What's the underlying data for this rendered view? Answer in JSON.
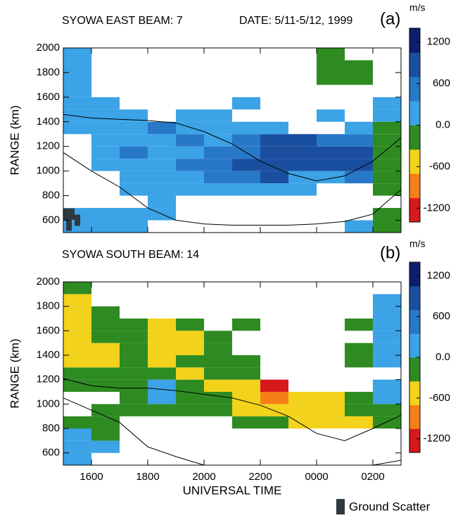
{
  "legend": {
    "label": "Ground Scatter",
    "color": "#2f3a40"
  },
  "chart_data": [
    {
      "type": "heatmap",
      "title": "SYOWA EAST BEAM: 7",
      "date": "DATE: 5/11-5/12, 1999",
      "panel_label": "(a)",
      "unit": "m/s",
      "ylabel": "RANGE (km)",
      "show_xticklabels": false,
      "xlim": [
        15,
        27
      ],
      "ylim": [
        500,
        2000
      ],
      "xticks": [
        {
          "value": 16,
          "label": "1600"
        },
        {
          "value": 18,
          "label": "1800"
        },
        {
          "value": 20,
          "label": "2000"
        },
        {
          "value": 22,
          "label": "2200"
        },
        {
          "value": 24,
          "label": "0000"
        },
        {
          "value": 26,
          "label": "0200"
        }
      ],
      "yticks": [
        600,
        800,
        1000,
        1200,
        1400,
        1600,
        1800,
        2000
      ],
      "colorscale": {
        "zlim": [
          -1400,
          1400
        ],
        "colors": [
          "#d7191c",
          "#f57f17",
          "#f2d21b",
          "#2e8b22",
          "#3ba3e6",
          "#2878c8",
          "#1a4fa0",
          "#0d1f6b"
        ],
        "ticks": [
          1200,
          600,
          {
            "value": 0,
            "label": "0.0"
          },
          -600,
          -1200
        ]
      },
      "xbins": [
        15,
        16,
        17,
        18,
        19,
        20,
        21,
        22,
        23,
        24,
        25,
        26,
        27
      ],
      "ybins": [
        500,
        600,
        700,
        800,
        900,
        1000,
        1100,
        1200,
        1300,
        1400,
        1500,
        1600,
        1700,
        1800,
        1900,
        2000
      ],
      "z": [
        [
          300,
          300,
          300,
          null,
          null,
          null,
          null,
          null,
          null,
          null,
          300,
          -300
        ],
        [
          300,
          300,
          300,
          300,
          null,
          null,
          null,
          null,
          null,
          null,
          null,
          -300
        ],
        [
          null,
          null,
          null,
          300,
          null,
          null,
          null,
          null,
          null,
          null,
          null,
          null
        ],
        [
          null,
          null,
          300,
          300,
          300,
          300,
          300,
          300,
          300,
          null,
          null,
          -200
        ],
        [
          null,
          null,
          300,
          300,
          300,
          400,
          600,
          700,
          300,
          300,
          400,
          -200
        ],
        [
          null,
          300,
          300,
          300,
          400,
          500,
          700,
          900,
          900,
          700,
          800,
          -300
        ],
        [
          null,
          300,
          400,
          300,
          300,
          400,
          600,
          900,
          900,
          900,
          1000,
          -200
        ],
        [
          null,
          300,
          300,
          300,
          400,
          300,
          500,
          700,
          700,
          400,
          400,
          -200
        ],
        [
          300,
          300,
          300,
          400,
          300,
          300,
          300,
          300,
          null,
          null,
          300,
          -100
        ],
        [
          300,
          300,
          300,
          null,
          300,
          300,
          null,
          null,
          null,
          300,
          null,
          300
        ],
        [
          300,
          300,
          null,
          null,
          null,
          null,
          300,
          null,
          null,
          null,
          null,
          300
        ],
        [
          300,
          null,
          null,
          null,
          null,
          null,
          null,
          null,
          null,
          null,
          null,
          null
        ],
        [
          300,
          null,
          null,
          null,
          null,
          null,
          null,
          null,
          null,
          -200,
          -100,
          null
        ],
        [
          300,
          null,
          null,
          null,
          null,
          null,
          null,
          null,
          null,
          -200,
          -200,
          null
        ],
        [
          300,
          null,
          null,
          null,
          null,
          null,
          null,
          null,
          null,
          -300,
          null,
          null
        ]
      ],
      "ground_scatter": {
        "x": [
          15.1,
          15.3,
          15.2,
          15.5
        ],
        "y": [
          650,
          650,
          560,
          600
        ]
      },
      "lines": [
        {
          "x": [
            15,
            16,
            17,
            18,
            19,
            20,
            21,
            22,
            23,
            24,
            25,
            26,
            27
          ],
          "values": [
            1460,
            1430,
            1420,
            1410,
            1390,
            1320,
            1220,
            1080,
            980,
            920,
            960,
            1080,
            1270
          ]
        },
        {
          "x": [
            15,
            16,
            17,
            18,
            19,
            20,
            21,
            22,
            23,
            24,
            25,
            26,
            27
          ],
          "values": [
            1150,
            1000,
            870,
            700,
            600,
            570,
            560,
            560,
            560,
            570,
            590,
            650,
            850
          ]
        }
      ]
    },
    {
      "type": "heatmap",
      "title": "SYOWA SOUTH BEAM: 14",
      "panel_label": "(b)",
      "unit": "m/s",
      "ylabel": "RANGE (km)",
      "xlabel": "UNIVERSAL TIME",
      "show_xticklabels": true,
      "xlim": [
        15,
        27
      ],
      "ylim": [
        500,
        2000
      ],
      "xticks": [
        {
          "value": 16,
          "label": "1600"
        },
        {
          "value": 18,
          "label": "1800"
        },
        {
          "value": 20,
          "label": "2000"
        },
        {
          "value": 22,
          "label": "2200"
        },
        {
          "value": 24,
          "label": "0000"
        },
        {
          "value": 26,
          "label": "0200"
        }
      ],
      "yticks": [
        600,
        800,
        1000,
        1200,
        1400,
        1600,
        1800,
        2000
      ],
      "colorscale": {
        "zlim": [
          -1400,
          1400
        ],
        "colors": [
          "#d7191c",
          "#f57f17",
          "#f2d21b",
          "#2e8b22",
          "#3ba3e6",
          "#2878c8",
          "#1a4fa0",
          "#0d1f6b"
        ],
        "ticks": [
          1200,
          600,
          {
            "value": 0,
            "label": "0.0"
          },
          -600,
          -1200
        ]
      },
      "xbins": [
        15,
        16,
        17,
        18,
        19,
        20,
        21,
        22,
        23,
        24,
        25,
        26,
        27
      ],
      "ybins": [
        500,
        600,
        700,
        800,
        900,
        1000,
        1100,
        1200,
        1300,
        1400,
        1500,
        1600,
        1700,
        1800,
        1900,
        2000
      ],
      "z": [
        [
          300,
          null,
          null,
          null,
          null,
          null,
          null,
          null,
          null,
          null,
          null,
          null
        ],
        [
          300,
          300,
          null,
          null,
          null,
          null,
          null,
          null,
          null,
          null,
          null,
          null
        ],
        [
          300,
          -300,
          null,
          null,
          null,
          null,
          null,
          null,
          null,
          null,
          null,
          null
        ],
        [
          -300,
          -300,
          null,
          null,
          null,
          null,
          -300,
          -300,
          -400,
          -400,
          -400,
          -300
        ],
        [
          null,
          -200,
          -200,
          -300,
          -300,
          -300,
          -400,
          -500,
          -600,
          -500,
          -300,
          -300
        ],
        [
          null,
          null,
          -200,
          300,
          -300,
          -300,
          -500,
          -1000,
          -700,
          -400,
          -300,
          300
        ],
        [
          -200,
          -300,
          -300,
          300,
          -300,
          -400,
          -600,
          -1100,
          null,
          null,
          null,
          300
        ],
        [
          -300,
          -300,
          -300,
          -300,
          -400,
          -300,
          -300,
          null,
          null,
          null,
          null,
          null
        ],
        [
          -400,
          -400,
          -300,
          -400,
          -300,
          -300,
          -300,
          null,
          null,
          null,
          -300,
          300
        ],
        [
          -500,
          -400,
          -300,
          -500,
          -400,
          -300,
          null,
          null,
          null,
          null,
          -300,
          300
        ],
        [
          -600,
          -300,
          -300,
          -700,
          -400,
          -300,
          null,
          null,
          null,
          null,
          null,
          300
        ],
        [
          -500,
          -300,
          -300,
          -600,
          -300,
          null,
          -300,
          null,
          null,
          null,
          -300,
          300
        ],
        [
          -400,
          -200,
          null,
          null,
          null,
          null,
          null,
          null,
          null,
          null,
          null,
          300
        ],
        [
          -500,
          null,
          null,
          null,
          null,
          null,
          null,
          null,
          null,
          null,
          null,
          300
        ],
        [
          -300,
          null,
          null,
          null,
          null,
          null,
          null,
          null,
          null,
          null,
          null,
          null
        ]
      ],
      "lines": [
        {
          "x": [
            15,
            16,
            17,
            18,
            19,
            20,
            21,
            22,
            23,
            24,
            25,
            26,
            27
          ],
          "values": [
            1210,
            1150,
            1130,
            1130,
            1110,
            1080,
            1050,
            990,
            900,
            760,
            700,
            800,
            910
          ]
        },
        {
          "x": [
            15,
            16,
            17,
            18,
            19,
            20,
            21,
            22,
            23,
            24,
            25,
            26,
            27
          ],
          "values": [
            1050,
            950,
            850,
            650,
            570,
            500,
            null,
            null,
            null,
            null,
            null,
            500,
            540
          ]
        }
      ]
    }
  ]
}
